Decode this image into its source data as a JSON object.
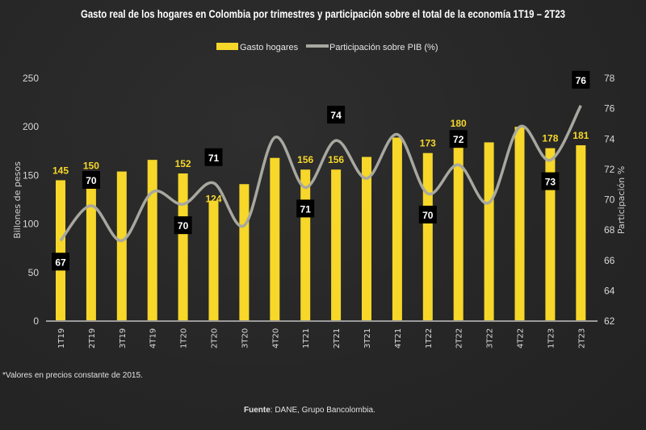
{
  "chart_data": {
    "type": "bar+line",
    "title": "Gasto real de los hogares en Colombia por trimestres y participación sobre el total de la economía 1T19 – 2T23",
    "categories": [
      "1T19",
      "2T19",
      "3T19",
      "4T19",
      "1T20",
      "2T20",
      "3T20",
      "4T20",
      "1T21",
      "2T21",
      "3T21",
      "4T21",
      "1T22",
      "2T22",
      "3T22",
      "4T22",
      "1T23",
      "2T23"
    ],
    "series": [
      {
        "name": "Gasto hogares",
        "type": "bar",
        "axis": "left",
        "color": "#f6d72a",
        "values": [
          145,
          150,
          154,
          166,
          152,
          124,
          141,
          168,
          156,
          156,
          169,
          189,
          173,
          180,
          184,
          200,
          178,
          181
        ],
        "data_labels": [
          "145",
          "150",
          "",
          "",
          "152",
          "124",
          "",
          "",
          "156",
          "156",
          "",
          "",
          "173",
          "180",
          "",
          "",
          "178",
          "181"
        ]
      },
      {
        "name": "Participación sobre PIB (%)",
        "type": "line",
        "axis": "right",
        "color": "#a8a8a0",
        "values": [
          67.3,
          69.6,
          67.3,
          70.5,
          69.7,
          71.1,
          68.3,
          74.1,
          70.8,
          73.9,
          71.4,
          74.3,
          70.4,
          72.3,
          69.8,
          74.8,
          72.6,
          76.2
        ],
        "data_labels": [
          "67",
          "70",
          "",
          "",
          "70",
          "71",
          "",
          "",
          "71",
          "74",
          "",
          "",
          "70",
          "72",
          "",
          "",
          "73",
          "76"
        ]
      }
    ],
    "ylabel": "Billones de pesos",
    "ylim": [
      0,
      250
    ],
    "yticks": [
      "0",
      "50",
      "100",
      "150",
      "200",
      "250"
    ],
    "y2label": "Participación %",
    "y2lim": [
      62,
      78
    ],
    "y2ticks": [
      "62",
      "64",
      "66",
      "68",
      "70",
      "72",
      "74",
      "76",
      "78"
    ],
    "grid": false,
    "legend": "top-center"
  },
  "footnote": "*Valores en precios constante de 2015.",
  "source_label": "Fuente",
  "source_text": ": DANE, Grupo Bancolombia."
}
